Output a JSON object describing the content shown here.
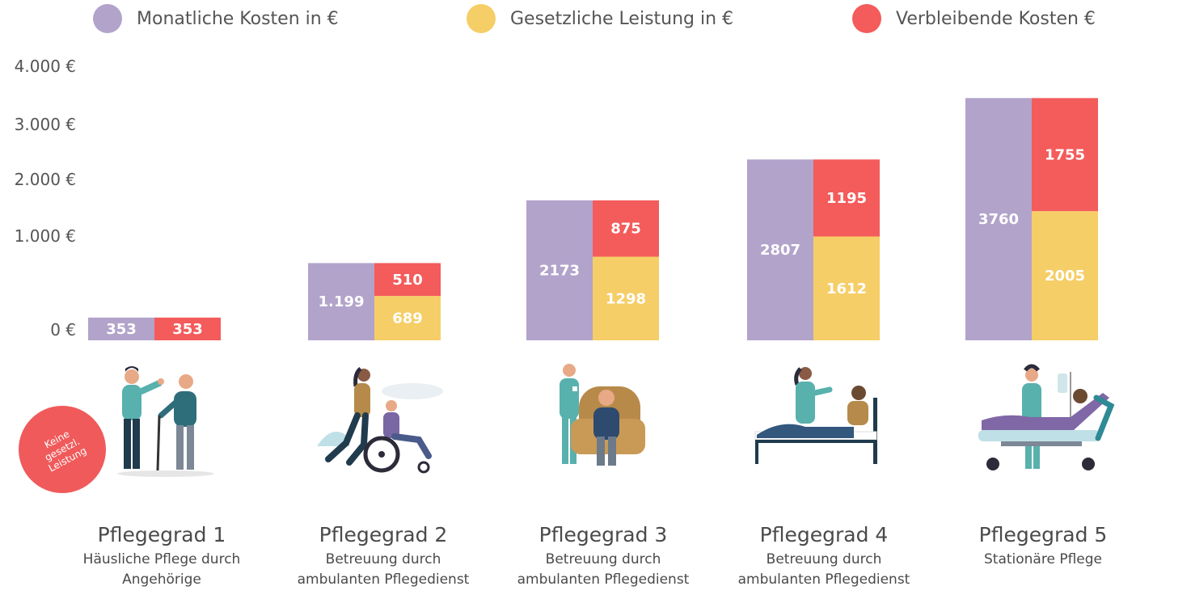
{
  "legend": [
    {
      "label": "Monatliche Kosten in €",
      "color": "#b2a3cb"
    },
    {
      "label": "Gesetzliche Leistung in €",
      "color": "#f6ce67"
    },
    {
      "label": "Verbleibende Kosten €",
      "color": "#f45b5b"
    }
  ],
  "chart_data": {
    "type": "bar",
    "ylim": [
      0,
      4000
    ],
    "yticks": [
      {
        "value": 0,
        "label": "0 €"
      },
      {
        "value": 1000,
        "label": "1.000 €"
      },
      {
        "value": 2000,
        "label": "2.000 €"
      },
      {
        "value": 3000,
        "label": "3.000 €"
      },
      {
        "value": 4000,
        "label": "4.000 €"
      }
    ],
    "categories": [
      "Pflegegrad 1",
      "Pflegegrad 2",
      "Pflegegrad 3",
      "Pflegegrad 4",
      "Pflegegrad 5"
    ],
    "subtitles": [
      "Häusliche Pflege durch\nAngehörige",
      "Betreuung durch\nambulanten Pflegedienst",
      "Betreuung durch\nambulanten Pflegedienst",
      "Betreuung durch\nambulanten Pflegedienst",
      "Stationäre Pflege"
    ],
    "series": [
      {
        "name": "Monatliche Kosten in €",
        "color": "#b2a3cb",
        "values": [
          353,
          1199,
          2173,
          2807,
          3760
        ],
        "labels": [
          "353",
          "1.199",
          "2173",
          "2807",
          "3760"
        ]
      },
      {
        "name": "Gesetzliche Leistung in €",
        "color": "#f6ce67",
        "values": [
          0,
          689,
          1298,
          1612,
          2005
        ],
        "labels": [
          "",
          "689",
          "1298",
          "1612",
          "2005"
        ]
      },
      {
        "name": "Verbleibende Kosten €",
        "color": "#f45b5b",
        "values": [
          353,
          510,
          875,
          1195,
          1755
        ],
        "labels": [
          "353",
          "510",
          "875",
          "1195",
          "1755"
        ]
      }
    ]
  },
  "note": {
    "text": "Keine\ngesetzl.\nLeistung",
    "color": "#f05a5b"
  },
  "illustrations": [
    "caregiver-with-elderly-icon",
    "wheelchair-push-icon",
    "nurse-with-armchair-icon",
    "nurse-with-bed-icon",
    "nurse-with-hospital-bed-icon"
  ]
}
